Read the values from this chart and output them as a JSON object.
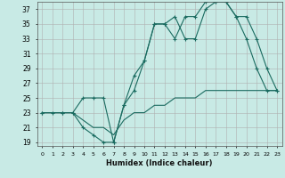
{
  "title": "",
  "xlabel": "Humidex (Indice chaleur)",
  "background_color": "#c8eae5",
  "grid_color": "#b0b0b0",
  "line_color": "#1a6b60",
  "xlim": [
    -0.5,
    23.5
  ],
  "ylim": [
    18.5,
    38.0
  ],
  "xticks": [
    0,
    1,
    2,
    3,
    4,
    5,
    6,
    7,
    8,
    9,
    10,
    11,
    12,
    13,
    14,
    15,
    16,
    17,
    18,
    19,
    20,
    21,
    22,
    23
  ],
  "yticks": [
    19,
    21,
    23,
    25,
    27,
    29,
    31,
    33,
    35,
    37
  ],
  "series": [
    {
      "x": [
        0,
        1,
        2,
        3,
        4,
        5,
        6,
        7,
        8,
        9,
        10,
        11,
        12,
        13,
        14,
        15,
        16,
        17,
        18,
        19,
        20,
        21,
        22,
        23
      ],
      "y": [
        23,
        23,
        23,
        23,
        21,
        20,
        19,
        19,
        24,
        26,
        30,
        35,
        35,
        36,
        33,
        33,
        37,
        38,
        38,
        36,
        33,
        29,
        26,
        26
      ],
      "marker": "+"
    },
    {
      "x": [
        0,
        2,
        3,
        4,
        5,
        6,
        7,
        8,
        9,
        10,
        11,
        12,
        13,
        14,
        15,
        16,
        17,
        18,
        19,
        20,
        21,
        22,
        23
      ],
      "y": [
        23,
        23,
        23,
        25,
        25,
        25,
        19,
        24,
        28,
        30,
        35,
        35,
        33,
        36,
        36,
        38,
        38,
        38,
        36,
        36,
        33,
        29,
        26
      ],
      "marker": "+"
    },
    {
      "x": [
        0,
        1,
        2,
        3,
        4,
        5,
        6,
        7,
        8,
        9,
        10,
        11,
        12,
        13,
        14,
        15,
        16,
        17,
        18,
        19,
        20,
        21,
        22,
        23
      ],
      "y": [
        23,
        23,
        23,
        23,
        22,
        21,
        21,
        20,
        22,
        23,
        23,
        24,
        24,
        25,
        25,
        25,
        26,
        26,
        26,
        26,
        26,
        26,
        26,
        26
      ],
      "marker": null
    }
  ]
}
